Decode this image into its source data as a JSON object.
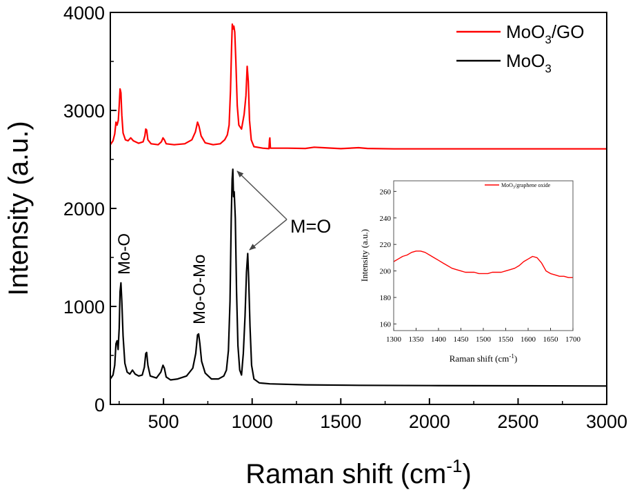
{
  "chart_data": [
    {
      "type": "line",
      "xlabel": "Raman shift (cm",
      "xlabel_sup": "-1",
      "xlabel_end": ")",
      "ylabel": "Intensity (a.u.)",
      "xlim": [
        200,
        3000
      ],
      "ylim": [
        0,
        4000
      ],
      "xticks": [
        500,
        1000,
        1500,
        2000,
        2500,
        3000
      ],
      "yticks": [
        0,
        1000,
        2000,
        3000,
        4000
      ],
      "legend_position": "top-right",
      "series": [
        {
          "name_main": "MoO",
          "name_sub": "3",
          "name_end": "/GO",
          "color": "#ff0000",
          "points": [
            [
              200,
              2650
            ],
            [
              215,
              2690
            ],
            [
              225,
              2760
            ],
            [
              232,
              2880
            ],
            [
              238,
              2850
            ],
            [
              245,
              2900
            ],
            [
              250,
              3050
            ],
            [
              255,
              3220
            ],
            [
              260,
              3180
            ],
            [
              265,
              2950
            ],
            [
              272,
              2770
            ],
            [
              285,
              2700
            ],
            [
              300,
              2690
            ],
            [
              315,
              2720
            ],
            [
              330,
              2690
            ],
            [
              360,
              2665
            ],
            [
              385,
              2680
            ],
            [
              395,
              2740
            ],
            [
              400,
              2810
            ],
            [
              405,
              2800
            ],
            [
              412,
              2700
            ],
            [
              430,
              2660
            ],
            [
              470,
              2650
            ],
            [
              488,
              2680
            ],
            [
              497,
              2720
            ],
            [
              505,
              2700
            ],
            [
              515,
              2660
            ],
            [
              560,
              2650
            ],
            [
              620,
              2660
            ],
            [
              660,
              2700
            ],
            [
              680,
              2780
            ],
            [
              692,
              2880
            ],
            [
              700,
              2840
            ],
            [
              712,
              2740
            ],
            [
              735,
              2670
            ],
            [
              780,
              2650
            ],
            [
              820,
              2660
            ],
            [
              845,
              2700
            ],
            [
              860,
              2750
            ],
            [
              870,
              2850
            ],
            [
              878,
              3200
            ],
            [
              884,
              3650
            ],
            [
              888,
              3880
            ],
            [
              893,
              3830
            ],
            [
              897,
              3860
            ],
            [
              902,
              3800
            ],
            [
              908,
              3500
            ],
            [
              916,
              3050
            ],
            [
              925,
              2850
            ],
            [
              940,
              2810
            ],
            [
              955,
              2960
            ],
            [
              965,
              3150
            ],
            [
              972,
              3450
            ],
            [
              978,
              3300
            ],
            [
              985,
              2900
            ],
            [
              995,
              2700
            ],
            [
              1010,
              2630
            ],
            [
              1060,
              2615
            ],
            [
              1095,
              2610
            ],
            [
              1098,
              2700
            ],
            [
              1100,
              2720
            ],
            [
              1103,
              2615
            ],
            [
              1200,
              2615
            ],
            [
              1300,
              2612
            ],
            [
              1350,
              2625
            ],
            [
              1400,
              2620
            ],
            [
              1500,
              2610
            ],
            [
              1600,
              2620
            ],
            [
              1650,
              2612
            ],
            [
              1800,
              2608
            ],
            [
              2200,
              2608
            ],
            [
              2600,
              2608
            ],
            [
              3000,
              2608
            ]
          ]
        },
        {
          "name_main": "MoO",
          "name_sub": "3",
          "name_end": "",
          "color": "#000000",
          "points": [
            [
              200,
              260
            ],
            [
              215,
              300
            ],
            [
              225,
              400
            ],
            [
              232,
              620
            ],
            [
              238,
              650
            ],
            [
              244,
              560
            ],
            [
              250,
              780
            ],
            [
              255,
              1150
            ],
            [
              260,
              1240
            ],
            [
              265,
              1050
            ],
            [
              272,
              700
            ],
            [
              282,
              420
            ],
            [
              295,
              330
            ],
            [
              310,
              310
            ],
            [
              325,
              350
            ],
            [
              340,
              310
            ],
            [
              360,
              290
            ],
            [
              380,
              300
            ],
            [
              392,
              380
            ],
            [
              400,
              520
            ],
            [
              405,
              530
            ],
            [
              412,
              400
            ],
            [
              425,
              290
            ],
            [
              460,
              270
            ],
            [
              485,
              330
            ],
            [
              497,
              400
            ],
            [
              505,
              370
            ],
            [
              515,
              280
            ],
            [
              540,
              250
            ],
            [
              580,
              260
            ],
            [
              630,
              290
            ],
            [
              665,
              370
            ],
            [
              682,
              520
            ],
            [
              692,
              710
            ],
            [
              698,
              720
            ],
            [
              705,
              620
            ],
            [
              715,
              440
            ],
            [
              735,
              320
            ],
            [
              770,
              260
            ],
            [
              810,
              260
            ],
            [
              840,
              290
            ],
            [
              855,
              350
            ],
            [
              866,
              550
            ],
            [
              875,
              1050
            ],
            [
              882,
              1900
            ],
            [
              887,
              2300
            ],
            [
              891,
              2400
            ],
            [
              895,
              2120
            ],
            [
              899,
              2170
            ],
            [
              905,
              1900
            ],
            [
              912,
              1150
            ],
            [
              920,
              600
            ],
            [
              930,
              350
            ],
            [
              940,
              300
            ],
            [
              950,
              520
            ],
            [
              960,
              900
            ],
            [
              968,
              1350
            ],
            [
              975,
              1540
            ],
            [
              980,
              1300
            ],
            [
              988,
              800
            ],
            [
              997,
              400
            ],
            [
              1010,
              260
            ],
            [
              1040,
              220
            ],
            [
              1100,
              210
            ],
            [
              1300,
              200
            ],
            [
              1600,
              195
            ],
            [
              2000,
              192
            ],
            [
              2500,
              190
            ],
            [
              3000,
              188
            ]
          ]
        }
      ],
      "annotations": {
        "mo_o": "Mo-O",
        "mo_o_mo": "Mo-O-Mo",
        "m_eq_o": "M=O"
      }
    },
    {
      "type": "line",
      "xlabel": "Raman shift (cm",
      "xlabel_sup": "-1",
      "xlabel_end": ")",
      "ylabel": "Intensity (a.u.)",
      "xlim": [
        1300,
        1700
      ],
      "ylim": [
        155,
        268
      ],
      "xticks": [
        1300,
        1350,
        1400,
        1450,
        1500,
        1550,
        1600,
        1650,
        1700
      ],
      "yticks": [
        160,
        180,
        200,
        220,
        240,
        260
      ],
      "legend_position": "top-right",
      "series": [
        {
          "name_main": "MoO",
          "name_sub": "3",
          "name_end": "/graphene oxide",
          "color": "#ff0000",
          "points": [
            [
              1300,
              207
            ],
            [
              1310,
              209
            ],
            [
              1320,
              211
            ],
            [
              1330,
              212
            ],
            [
              1340,
              214
            ],
            [
              1350,
              215
            ],
            [
              1360,
              215
            ],
            [
              1370,
              214
            ],
            [
              1380,
              212
            ],
            [
              1390,
              210
            ],
            [
              1400,
              208
            ],
            [
              1410,
              206
            ],
            [
              1420,
              204
            ],
            [
              1430,
              202
            ],
            [
              1440,
              201
            ],
            [
              1450,
              200
            ],
            [
              1460,
              199
            ],
            [
              1470,
              199
            ],
            [
              1480,
              199
            ],
            [
              1490,
              198
            ],
            [
              1500,
              198
            ],
            [
              1510,
              198
            ],
            [
              1520,
              199
            ],
            [
              1530,
              199
            ],
            [
              1540,
              199
            ],
            [
              1550,
              200
            ],
            [
              1560,
              201
            ],
            [
              1570,
              202
            ],
            [
              1580,
              204
            ],
            [
              1590,
              207
            ],
            [
              1600,
              209
            ],
            [
              1610,
              211
            ],
            [
              1620,
              210
            ],
            [
              1630,
              206
            ],
            [
              1640,
              200
            ],
            [
              1650,
              198
            ],
            [
              1660,
              197
            ],
            [
              1670,
              196
            ],
            [
              1680,
              196
            ],
            [
              1690,
              195
            ],
            [
              1700,
              195
            ]
          ]
        }
      ]
    }
  ]
}
